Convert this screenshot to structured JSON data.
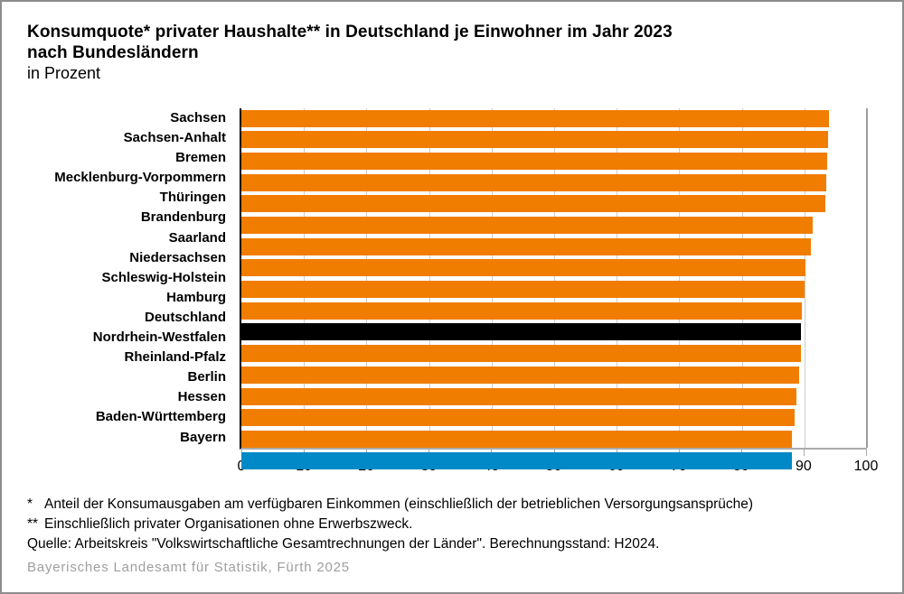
{
  "title": {
    "line1": "Konsumquote* privater Haushalte** in Deutschland je Einwohner im Jahr 2023",
    "line2": "nach Bundesländern",
    "subtitle": "in Prozent"
  },
  "chart_data": {
    "type": "bar",
    "orientation": "horizontal",
    "title": "Konsumquote privater Haushalte in Deutschland je Einwohner im Jahr 2023 nach Bundesländern",
    "unit": "Prozent",
    "xlabel": "",
    "ylabel": "",
    "xlim": [
      0,
      100
    ],
    "x_ticks": [
      0,
      10,
      20,
      30,
      40,
      50,
      60,
      70,
      80,
      90,
      100
    ],
    "grid": true,
    "categories": [
      "Sachsen",
      "Sachsen-Anhalt",
      "Bremen",
      "Mecklenburg-Vorpommern",
      "Thüringen",
      "Brandenburg",
      "Saarland",
      "Niedersachsen",
      "Schleswig-Holstein",
      "Hamburg",
      "Deutschland",
      "Nordrhein-Westfalen",
      "Rheinland-Pfalz",
      "Berlin",
      "Hessen",
      "Baden-Württemberg",
      "Bayern"
    ],
    "values": [
      93.9,
      93.8,
      93.6,
      93.5,
      93.4,
      91.4,
      91.0,
      90.2,
      90.1,
      89.6,
      89.5,
      89.4,
      89.1,
      88.7,
      88.5,
      88.0,
      88.0
    ],
    "bar_color_keys": [
      "bar_default",
      "bar_default",
      "bar_default",
      "bar_default",
      "bar_default",
      "bar_default",
      "bar_default",
      "bar_default",
      "bar_default",
      "bar_default",
      "bar_deutschland",
      "bar_default",
      "bar_default",
      "bar_default",
      "bar_default",
      "bar_default",
      "bar_bayern"
    ]
  },
  "colors": {
    "bar_default": "#F07D00",
    "bar_deutschland": "#000000",
    "bar_bayern": "#0089C6",
    "gridline": "#CDCDCD",
    "gridline_end": "#9C9C9C",
    "axis_line": "#000000",
    "baseline": "#ABABAB",
    "credit_text": "#9E9E9E",
    "frame_border": "#8C8C8C"
  },
  "footnotes": [
    {
      "marker": "*",
      "text": "Anteil der Konsumausgaben am verfügbaren Einkommen (einschließlich der betrieblichen Versorgungsansprüche)"
    },
    {
      "marker": "**",
      "text": "Einschließlich privater Organisationen ohne Erwerbszweck."
    },
    {
      "marker": "",
      "text": "Quelle: Arbeitskreis \"Volkswirtschaftliche Gesamtrechnungen der Länder\". Berechnungsstand: H2024."
    }
  ],
  "credit": "Bayerisches Landesamt für Statistik, Fürth 2025"
}
